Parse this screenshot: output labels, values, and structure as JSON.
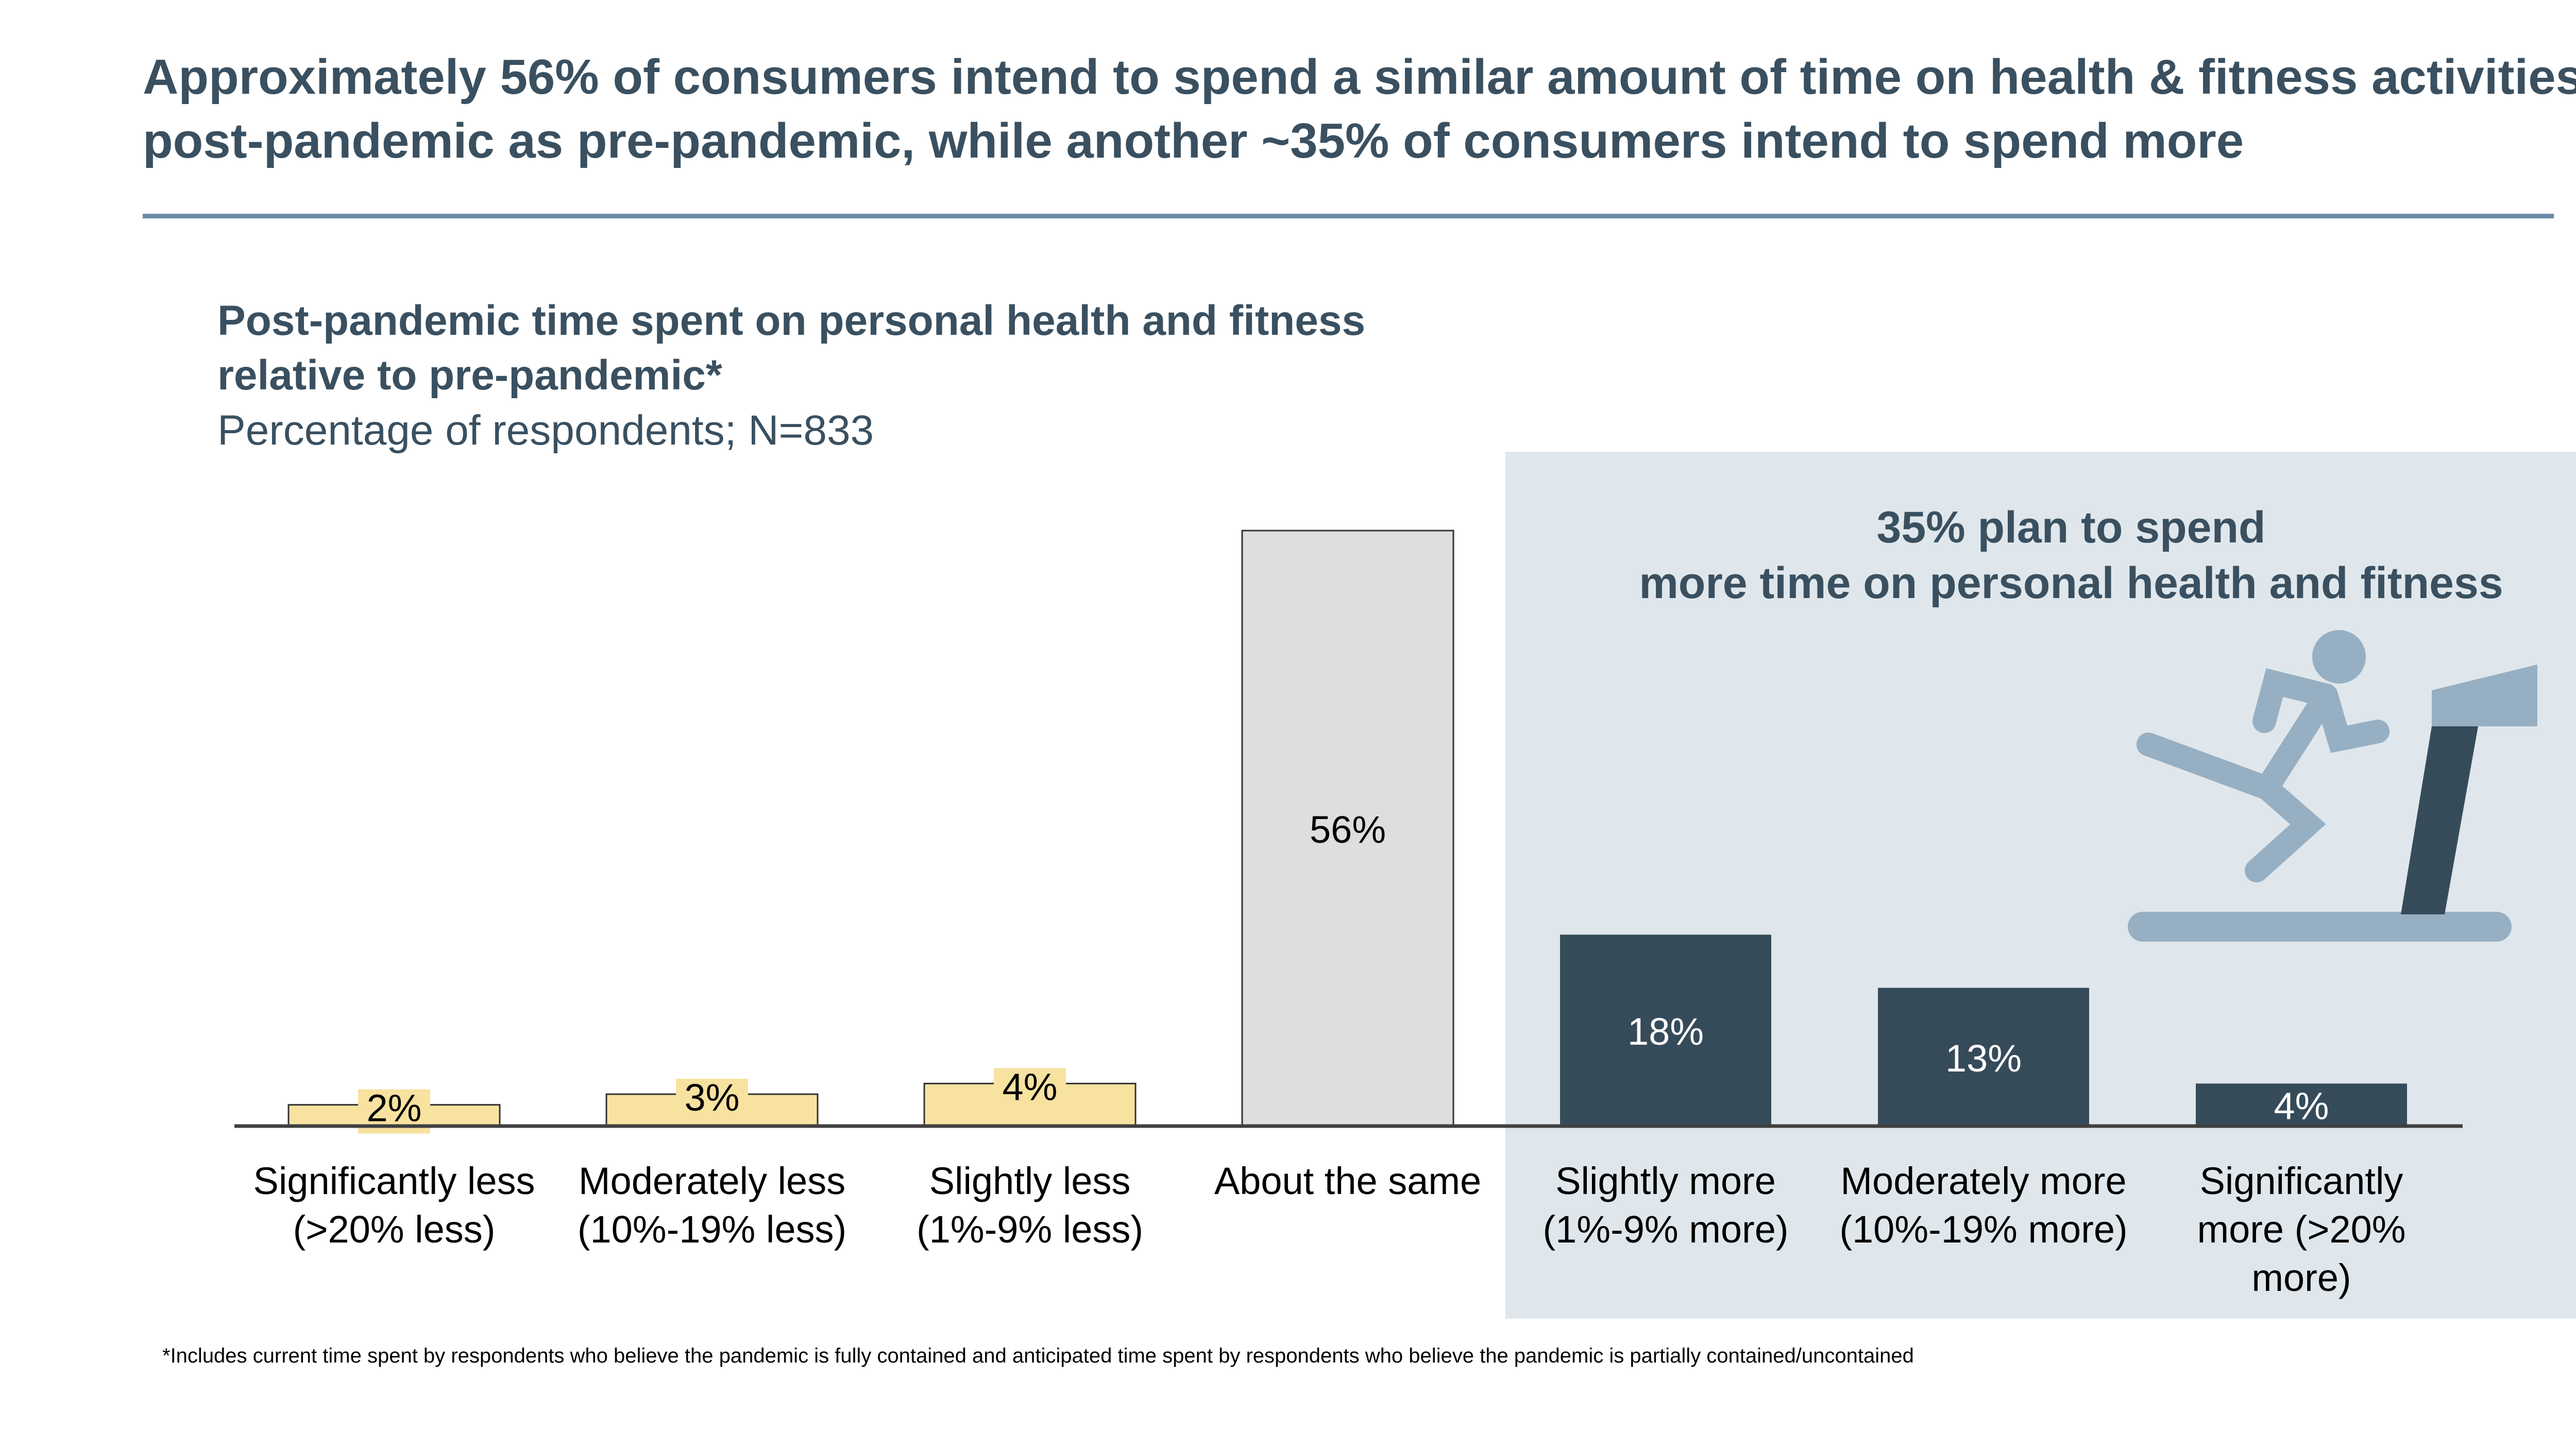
{
  "headline": "Approximately 56% of consumers intend to spend a similar amount of time on health & fitness activities post-pandemic as pre-pandemic, while another ~35% of consumers intend to spend more",
  "chart_data": {
    "type": "bar",
    "title": "Post-pandemic time spent on personal health and fitness relative to pre-pandemic*",
    "subtitle": "Percentage of respondents; N=833",
    "categories": [
      [
        "Significantly less",
        "(>20% less)"
      ],
      [
        "Moderately less",
        "(10%-19% less)"
      ],
      [
        "Slightly less",
        "(1%-9% less)"
      ],
      [
        "About the same"
      ],
      [
        "Slightly more",
        "(1%-9% more)"
      ],
      [
        "Moderately more",
        "(10%-19% more)"
      ],
      [
        "Significantly",
        "more (>20%",
        "more)"
      ]
    ],
    "values": [
      2,
      3,
      4,
      56,
      18,
      13,
      4
    ],
    "data_labels": [
      "2%",
      "3%",
      "4%",
      "56%",
      "18%",
      "13%",
      "4%"
    ],
    "bar_colors": [
      "#f7e2a0",
      "#f7e2a0",
      "#f7e2a0",
      "#dedede",
      "#364b5a",
      "#364b5a",
      "#364b5a"
    ],
    "label_colors": [
      "#000000",
      "#000000",
      "#000000",
      "#000000",
      "#ffffff",
      "#ffffff",
      "#ffffff"
    ],
    "grid": false,
    "ylim": [
      0,
      56
    ]
  },
  "callout": {
    "line1": "35% plan to spend",
    "line2": "more time on personal health and fitness"
  },
  "icons": {
    "callout": "treadmill-runner-icon"
  },
  "colors": {
    "panel": "#dfe7ec",
    "accent": "#364b5a",
    "title": "#3a5060",
    "icon": "#97afc2"
  },
  "footnote": "*Includes current time spent by respondents who believe the pandemic is fully contained and anticipated time spent by respondents who believe the pandemic is partially contained/uncontained"
}
